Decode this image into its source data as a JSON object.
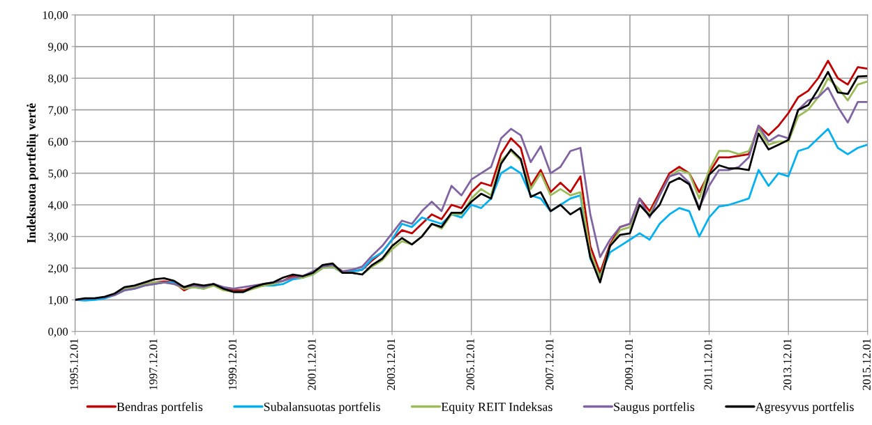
{
  "chart_data": {
    "type": "line",
    "ylabel": "Indeksuota portfelių vertė",
    "x": [
      "1995-12",
      "1996-03",
      "1996-06",
      "1996-09",
      "1996-12",
      "1997-03",
      "1997-06",
      "1997-09",
      "1997-12",
      "1998-03",
      "1998-06",
      "1998-09",
      "1998-12",
      "1999-03",
      "1999-06",
      "1999-09",
      "1999-12",
      "2000-03",
      "2000-06",
      "2000-09",
      "2000-12",
      "2001-03",
      "2001-06",
      "2001-09",
      "2001-12",
      "2002-03",
      "2002-06",
      "2002-09",
      "2002-12",
      "2003-03",
      "2003-06",
      "2003-09",
      "2003-12",
      "2004-03",
      "2004-06",
      "2004-09",
      "2004-12",
      "2005-03",
      "2005-06",
      "2005-09",
      "2005-12",
      "2006-03",
      "2006-06",
      "2006-09",
      "2006-12",
      "2007-03",
      "2007-06",
      "2007-09",
      "2007-12",
      "2008-03",
      "2008-06",
      "2008-09",
      "2008-12",
      "2009-03",
      "2009-06",
      "2009-09",
      "2009-12",
      "2010-03",
      "2010-06",
      "2010-09",
      "2010-12",
      "2011-03",
      "2011-06",
      "2011-09",
      "2011-12",
      "2012-03",
      "2012-06",
      "2012-09",
      "2012-12",
      "2013-03",
      "2013-06",
      "2013-09",
      "2013-12",
      "2014-03",
      "2014-06",
      "2014-09",
      "2014-12",
      "2015-03",
      "2015-06",
      "2015-09",
      "2015-12"
    ],
    "series": [
      {
        "name": "Bendras portfelis",
        "color": "#c00000",
        "values": [
          null,
          null,
          null,
          null,
          null,
          null,
          null,
          1.5,
          1.55,
          1.58,
          1.55,
          1.3,
          1.45,
          1.4,
          1.5,
          1.35,
          1.3,
          1.3,
          1.4,
          1.45,
          1.5,
          1.6,
          1.75,
          1.7,
          1.85,
          2.05,
          2.1,
          1.9,
          1.9,
          1.95,
          2.25,
          2.5,
          2.9,
          3.2,
          3.1,
          3.4,
          3.7,
          3.55,
          4.0,
          3.9,
          4.4,
          4.7,
          4.6,
          5.6,
          6.1,
          5.8,
          4.6,
          5.1,
          4.4,
          4.7,
          4.4,
          4.9,
          2.7,
          1.85,
          2.75,
          3.3,
          3.4,
          4.2,
          3.8,
          4.4,
          5.0,
          5.2,
          5.0,
          4.4,
          5.0,
          5.5,
          5.5,
          5.55,
          5.6,
          6.5,
          6.2,
          6.5,
          6.9,
          7.4,
          7.6,
          8.0,
          8.55,
          8.0,
          7.8,
          8.35,
          8.3
        ]
      },
      {
        "name": "Subalansuotas portfelis",
        "color": "#00b0f0",
        "values": [
          1.0,
          0.98,
          1.0,
          1.05,
          1.15,
          1.3,
          1.35,
          1.45,
          1.5,
          1.55,
          1.55,
          1.35,
          1.4,
          1.35,
          1.5,
          1.35,
          1.25,
          1.25,
          1.4,
          1.45,
          1.45,
          1.5,
          1.65,
          1.7,
          1.8,
          2.0,
          2.05,
          1.85,
          1.9,
          1.95,
          2.3,
          2.5,
          2.9,
          3.4,
          3.3,
          3.6,
          3.5,
          3.4,
          3.7,
          3.6,
          4.0,
          3.9,
          4.2,
          5.0,
          5.2,
          5.0,
          4.3,
          4.2,
          3.8,
          4.0,
          4.2,
          4.3,
          2.3,
          1.75,
          2.5,
          2.7,
          2.9,
          3.1,
          2.9,
          3.4,
          3.7,
          3.9,
          3.8,
          3.0,
          3.6,
          3.95,
          4.0,
          4.1,
          4.2,
          5.1,
          4.6,
          5.0,
          4.9,
          5.7,
          5.8,
          6.1,
          6.4,
          5.8,
          5.6,
          5.8,
          5.9
        ]
      },
      {
        "name": "Equity REIT Indeksas",
        "color": "#9bbb59",
        "values": [
          null,
          null,
          null,
          null,
          1.15,
          1.35,
          1.4,
          1.5,
          1.55,
          1.55,
          1.5,
          1.35,
          1.4,
          1.35,
          1.45,
          1.3,
          1.25,
          1.25,
          1.35,
          1.45,
          1.5,
          1.6,
          1.7,
          1.7,
          1.8,
          2.0,
          2.05,
          1.85,
          1.85,
          1.8,
          2.05,
          2.25,
          2.6,
          2.85,
          2.75,
          3.0,
          3.4,
          3.25,
          3.7,
          3.7,
          4.2,
          4.5,
          4.3,
          5.4,
          5.7,
          5.4,
          4.5,
          5.0,
          4.3,
          4.5,
          4.3,
          4.4,
          2.5,
          1.7,
          2.7,
          3.2,
          3.3,
          4.0,
          3.7,
          4.3,
          4.9,
          5.1,
          5.0,
          4.2,
          5.1,
          5.7,
          5.7,
          5.6,
          5.7,
          6.4,
          5.9,
          6.0,
          6.0,
          6.8,
          7.0,
          7.4,
          8.0,
          7.7,
          7.3,
          7.8,
          7.9
        ]
      },
      {
        "name": "Saugus portfelis",
        "color": "#8064a2",
        "values": [
          1.0,
          1.03,
          1.05,
          1.08,
          1.15,
          1.3,
          1.35,
          1.45,
          1.5,
          1.55,
          1.5,
          1.4,
          1.45,
          1.4,
          1.5,
          1.4,
          1.35,
          1.4,
          1.45,
          1.5,
          1.55,
          1.6,
          1.7,
          1.75,
          1.9,
          2.05,
          2.1,
          1.9,
          1.95,
          2.05,
          2.4,
          2.7,
          3.1,
          3.5,
          3.4,
          3.8,
          4.1,
          3.8,
          4.6,
          4.3,
          4.8,
          5.0,
          5.2,
          6.1,
          6.4,
          6.2,
          5.35,
          5.85,
          5.0,
          5.2,
          5.7,
          5.8,
          3.7,
          2.35,
          2.9,
          3.3,
          3.4,
          4.2,
          3.6,
          4.3,
          4.9,
          5.0,
          4.7,
          3.9,
          4.6,
          5.1,
          5.1,
          5.2,
          5.5,
          6.5,
          6.0,
          6.2,
          6.1,
          7.0,
          7.3,
          7.4,
          7.7,
          7.1,
          6.6,
          7.25,
          7.25
        ]
      },
      {
        "name": "Agresyvus portfelis",
        "color": "#000000",
        "values": [
          1.0,
          1.05,
          1.05,
          1.1,
          1.2,
          1.4,
          1.45,
          1.55,
          1.65,
          1.68,
          1.6,
          1.4,
          1.5,
          1.45,
          1.5,
          1.35,
          1.25,
          1.25,
          1.4,
          1.5,
          1.55,
          1.7,
          1.8,
          1.75,
          1.85,
          2.1,
          2.15,
          1.85,
          1.85,
          1.8,
          2.1,
          2.3,
          2.7,
          2.95,
          2.75,
          3.0,
          3.4,
          3.3,
          3.75,
          3.75,
          4.1,
          4.35,
          4.2,
          5.3,
          5.75,
          5.45,
          4.25,
          4.4,
          3.8,
          4.0,
          3.7,
          3.9,
          2.35,
          1.55,
          2.7,
          3.05,
          3.1,
          4.0,
          3.65,
          4.0,
          4.7,
          4.85,
          4.65,
          3.85,
          4.95,
          5.25,
          5.15,
          5.15,
          5.1,
          6.25,
          5.75,
          5.9,
          6.05,
          7.0,
          7.15,
          7.65,
          8.2,
          7.55,
          7.5,
          8.05,
          8.07
        ]
      }
    ],
    "xlim": [
      "1995-12",
      "2015-12"
    ],
    "xticks": [
      {
        "value": "1995-12",
        "label": "1995.12.01"
      },
      {
        "value": "1997-12",
        "label": "1997.12.01"
      },
      {
        "value": "1999-12",
        "label": "1999.12.01"
      },
      {
        "value": "2001-12",
        "label": "2001.12.01"
      },
      {
        "value": "2003-12",
        "label": "2003.12.01"
      },
      {
        "value": "2005-12",
        "label": "2005.12.01"
      },
      {
        "value": "2007-12",
        "label": "2007.12.01"
      },
      {
        "value": "2009-12",
        "label": "2009.12.01"
      },
      {
        "value": "2011-12",
        "label": "2011.12.01"
      },
      {
        "value": "2013-12",
        "label": "2013.12.01"
      },
      {
        "value": "2015-12",
        "label": "2015.12.01"
      }
    ],
    "ylim": [
      0,
      10
    ],
    "yticks": [
      {
        "value": 0,
        "label": "0,00"
      },
      {
        "value": 1,
        "label": "1,00"
      },
      {
        "value": 2,
        "label": "2,00"
      },
      {
        "value": 3,
        "label": "3,00"
      },
      {
        "value": 4,
        "label": "4,00"
      },
      {
        "value": 5,
        "label": "5,00"
      },
      {
        "value": 6,
        "label": "6,00"
      },
      {
        "value": 7,
        "label": "7,00"
      },
      {
        "value": 8,
        "label": "8,00"
      },
      {
        "value": 9,
        "label": "9,00"
      },
      {
        "value": 10,
        "label": "10,00"
      }
    ],
    "grid": true,
    "legend": "bottom",
    "marker": "none",
    "line_style": "solid"
  }
}
